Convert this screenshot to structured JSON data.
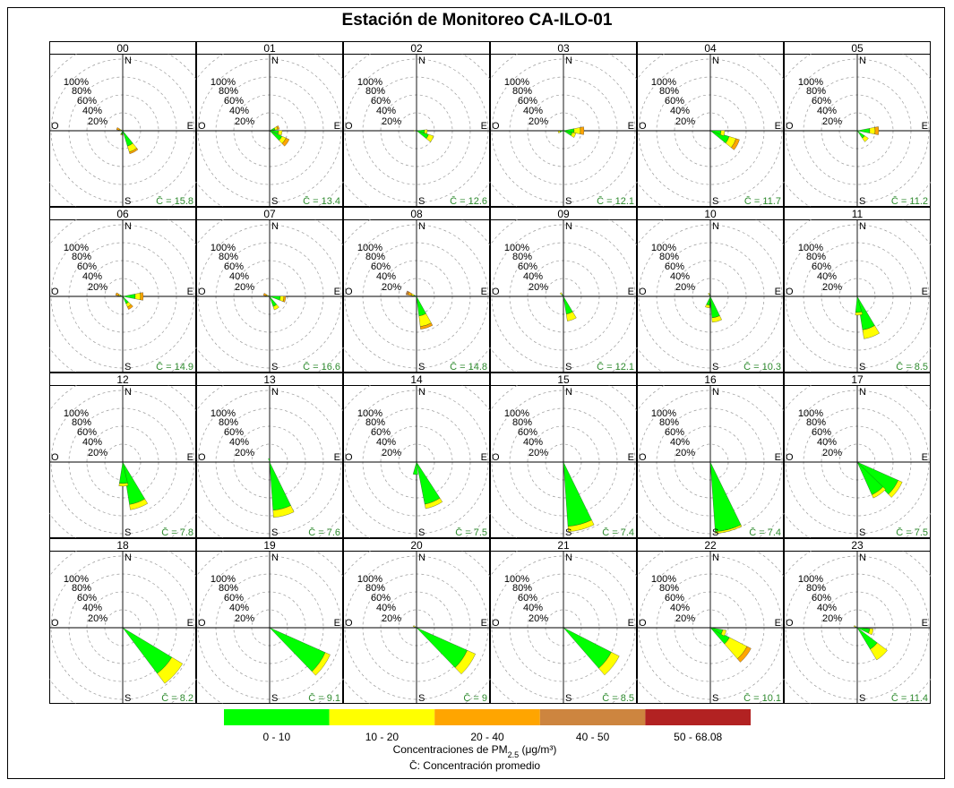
{
  "title": "Estación de Monitoreo CA-ILO-01",
  "compass": {
    "n": "N",
    "s": "S",
    "e": "E",
    "w": "O"
  },
  "ring_labels": [
    "100%",
    "80%",
    "60%",
    "40%",
    "20%"
  ],
  "mean_symbol": "C̄",
  "legend": {
    "bins": [
      {
        "label": "0  -  10",
        "color": "#00ff00"
      },
      {
        "label": "10  -  20",
        "color": "#ffff00"
      },
      {
        "label": "20  -  40",
        "color": "#ffa500"
      },
      {
        "label": "40  -  50",
        "color": "#cd853f"
      },
      {
        "label": "50  -  68.08",
        "color": "#b22222"
      }
    ],
    "title_prefix": "Concentraciones de PM",
    "title_sub": "2.5",
    "title_suffix": " (μg/m³)",
    "mean_note": "C̄: Concentración promedio"
  },
  "chart_data": {
    "type": "polar-bar",
    "scale": "percent frequency per hour, rings 20% to 100%",
    "ring_values": [
      20,
      40,
      60,
      80,
      100
    ],
    "bin_colors": [
      "#00ff00",
      "#ffff00",
      "#ffa500",
      "#cd853f",
      "#b22222"
    ],
    "panels": [
      {
        "hour": "00",
        "mean": "15.8",
        "petals": [
          {
            "dir": 152,
            "segs": [
              18,
              7,
              2
            ]
          },
          {
            "dir": 290,
            "segs": [
              2,
              2,
              3
            ]
          },
          {
            "dir": 200,
            "segs": [
              4,
              1
            ]
          }
        ]
      },
      {
        "hour": "01",
        "mean": "13.4",
        "petals": [
          {
            "dir": 125,
            "segs": [
              15,
              5,
              4
            ]
          },
          {
            "dir": 100,
            "segs": [
              10,
              4
            ]
          },
          {
            "dir": 70,
            "segs": [
              6,
              3,
              2
            ]
          }
        ]
      },
      {
        "hour": "02",
        "mean": "12.6",
        "petals": [
          {
            "dir": 118,
            "segs": [
              14,
              6
            ]
          },
          {
            "dir": 95,
            "segs": [
              9,
              3
            ]
          },
          {
            "dir": 270,
            "segs": [
              2,
              1
            ]
          }
        ]
      },
      {
        "hour": "03",
        "mean": "12.1",
        "petals": [
          {
            "dir": 90,
            "segs": [
              12,
              7,
              4
            ]
          },
          {
            "dir": 112,
            "segs": [
              10,
              4
            ]
          },
          {
            "dir": 255,
            "segs": [
              4,
              2
            ]
          }
        ]
      },
      {
        "hour": "04",
        "mean": "11.7",
        "petals": [
          {
            "dir": 118,
            "segs": [
              22,
              8,
              4
            ]
          },
          {
            "dir": 100,
            "segs": [
              12,
              4
            ]
          }
        ]
      },
      {
        "hour": "05",
        "mean": "11.2",
        "petals": [
          {
            "dir": 90,
            "segs": [
              14,
              6,
              4
            ]
          },
          {
            "dir": 135,
            "segs": [
              10,
              5
            ]
          },
          {
            "dir": 260,
            "segs": [
              2
            ]
          }
        ]
      },
      {
        "hour": "06",
        "mean": "14.9",
        "petals": [
          {
            "dir": 90,
            "segs": [
              14,
              6,
              3
            ]
          },
          {
            "dir": 145,
            "segs": [
              9,
              4,
              3
            ]
          },
          {
            "dir": 290,
            "segs": [
              3,
              2,
              3
            ]
          }
        ]
      },
      {
        "hour": "07",
        "mean": "16.6",
        "petals": [
          {
            "dir": 100,
            "segs": [
              12,
              4,
              2
            ]
          },
          {
            "dir": 150,
            "segs": [
              12,
              4
            ]
          },
          {
            "dir": 290,
            "segs": [
              2,
              2,
              3
            ]
          }
        ]
      },
      {
        "hour": "08",
        "mean": "14.8",
        "petals": [
          {
            "dir": 162,
            "segs": [
              22,
              12,
              3
            ]
          },
          {
            "dir": 290,
            "segs": [
              3,
              3,
              4,
              2
            ]
          }
        ]
      },
      {
        "hour": "09",
        "mean": "12.1",
        "petals": [
          {
            "dir": 160,
            "segs": [
              20,
              8
            ]
          },
          {
            "dir": 320,
            "segs": [
              3,
              2
            ]
          }
        ]
      },
      {
        "hour": "10",
        "mean": "10.3",
        "petals": [
          {
            "dir": 165,
            "segs": [
              24,
              5
            ]
          },
          {
            "dir": 195,
            "segs": [
              10,
              3
            ]
          },
          {
            "dir": 330,
            "segs": [
              2,
              2
            ]
          }
        ]
      },
      {
        "hour": "11",
        "mean": "8.5",
        "petals": [
          {
            "dir": 160,
            "segs": [
              38,
              10
            ]
          },
          {
            "dir": 175,
            "segs": [
              18,
              3
            ]
          }
        ]
      },
      {
        "hour": "12",
        "mean": "7.8",
        "petals": [
          {
            "dir": 160,
            "segs": [
              48,
              6
            ]
          },
          {
            "dir": 178,
            "segs": [
              24,
              3
            ]
          }
        ]
      },
      {
        "hour": "13",
        "mean": "7.6",
        "petals": [
          {
            "dir": 165,
            "segs": [
              54,
              8
            ]
          },
          {
            "dir": 350,
            "segs": [
              4
            ]
          }
        ]
      },
      {
        "hour": "14",
        "mean": "7.5",
        "petals": [
          {
            "dir": 158,
            "segs": [
              48,
              5
            ]
          },
          {
            "dir": 185,
            "segs": [
              14
            ]
          }
        ]
      },
      {
        "hour": "15",
        "mean": "7.4",
        "petals": [
          {
            "dir": 165,
            "segs": [
              72,
              6
            ]
          }
        ]
      },
      {
        "hour": "16",
        "mean": "7.4",
        "petals": [
          {
            "dir": 165,
            "segs": [
              78,
              2
            ]
          }
        ]
      },
      {
        "hour": "17",
        "mean": "7.5",
        "petals": [
          {
            "dir": 125,
            "segs": [
              50,
              5
            ]
          },
          {
            "dir": 145,
            "segs": [
              40,
              4
            ]
          }
        ]
      },
      {
        "hour": "18",
        "mean": "8.2",
        "petals": [
          {
            "dir": 132,
            "segs": [
              64,
              14
            ]
          }
        ]
      },
      {
        "hour": "19",
        "mean": "9.1",
        "petals": [
          {
            "dir": 125,
            "segs": [
              68,
              6
            ]
          }
        ]
      },
      {
        "hour": "20",
        "mean": "9",
        "petals": [
          {
            "dir": 125,
            "segs": [
              62,
              10
            ]
          },
          {
            "dir": 300,
            "segs": [
              2,
              2
            ]
          }
        ]
      },
      {
        "hour": "21",
        "mean": "8.5",
        "petals": [
          {
            "dir": 128,
            "segs": [
              60,
              10
            ]
          }
        ]
      },
      {
        "hour": "22",
        "mean": "10.1",
        "petals": [
          {
            "dir": 128,
            "segs": [
              24,
              22,
              5
            ]
          },
          {
            "dir": 110,
            "segs": [
              14,
              4
            ]
          }
        ]
      },
      {
        "hour": "23",
        "mean": "11.4",
        "petals": [
          {
            "dir": 138,
            "segs": [
              28,
              14
            ]
          },
          {
            "dir": 105,
            "segs": [
              14,
              4
            ]
          },
          {
            "dir": 300,
            "segs": [
              2,
              2
            ]
          }
        ]
      }
    ]
  }
}
